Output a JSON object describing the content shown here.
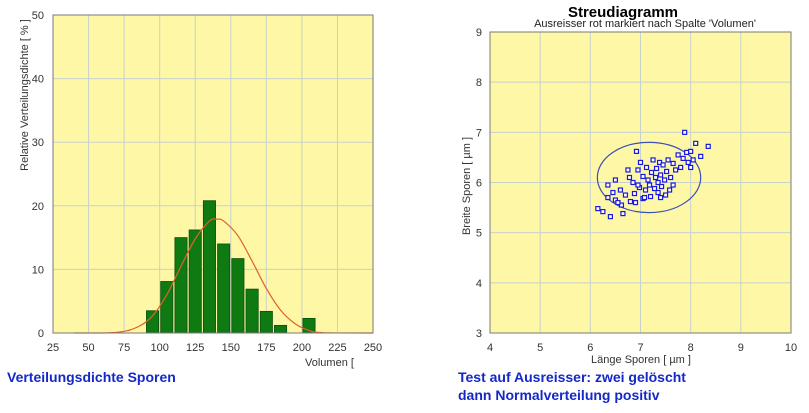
{
  "captions": {
    "left": "Verteilungsdichte Sporen",
    "right_line1": "Test auf Ausreisser: zwei gelöscht",
    "right_line2": "dann Normalverteilung positiv"
  },
  "colors": {
    "plot_bg": "#fef7a6",
    "grid": "#c8d2cc",
    "bar_fill": "#0f7a12",
    "bar_edge": "#0a4f0c",
    "curve": "#e0602a",
    "points": "#1a1adc",
    "ellipse": "#3a4fb8",
    "caption": "#1428c8"
  },
  "chart_data": [
    {
      "type": "bar",
      "title": "",
      "xlabel": "Volumen [",
      "ylabel": "Relative Verteilungsdichte [ % ]",
      "xlim": [
        25,
        250
      ],
      "ylim": [
        0,
        50
      ],
      "x_ticks": [
        25,
        50,
        75,
        100,
        125,
        150,
        175,
        200,
        225,
        250
      ],
      "y_ticks": [
        0,
        10,
        20,
        30,
        40,
        50
      ],
      "grid": true,
      "bin_width": 10,
      "bins": {
        "centers": [
          95,
          105,
          115,
          125,
          135,
          145,
          155,
          165,
          175,
          185,
          195,
          205
        ],
        "values": [
          3.5,
          8.1,
          15.0,
          16.2,
          20.8,
          14.0,
          11.7,
          6.9,
          3.4,
          1.2,
          0,
          2.3
        ]
      },
      "density_curve": {
        "x": [
          40,
          70,
          85,
          95,
          105,
          115,
          125,
          135,
          140,
          145,
          155,
          165,
          175,
          185,
          195,
          205,
          215,
          250
        ],
        "y": [
          0,
          0.1,
          1.0,
          2.7,
          6.0,
          10.5,
          14.8,
          17.6,
          17.9,
          17.6,
          15.3,
          11.3,
          7.0,
          3.6,
          1.5,
          0.4,
          0.05,
          0
        ]
      }
    },
    {
      "type": "scatter",
      "title": "Streudiagramm",
      "subtitle": "Ausreisser rot markiert nach Spalte 'Volumen'",
      "xlabel": "Länge Sporen [ µm ]",
      "ylabel": "Breite Sporen [ µm ]",
      "xlim": [
        4,
        10
      ],
      "ylim": [
        3,
        9
      ],
      "x_ticks": [
        4,
        5,
        6,
        7,
        8,
        9,
        10
      ],
      "y_ticks": [
        3,
        4,
        5,
        6,
        7,
        8,
        9
      ],
      "grid": true,
      "points": [
        [
          6.15,
          5.48
        ],
        [
          6.25,
          5.42
        ],
        [
          6.35,
          5.7
        ],
        [
          6.35,
          5.95
        ],
        [
          6.4,
          5.32
        ],
        [
          6.45,
          5.8
        ],
        [
          6.5,
          5.65
        ],
        [
          6.6,
          5.85
        ],
        [
          6.62,
          5.55
        ],
        [
          6.65,
          5.38
        ],
        [
          6.7,
          5.75
        ],
        [
          6.75,
          6.25
        ],
        [
          6.8,
          5.62
        ],
        [
          6.85,
          6.0
        ],
        [
          6.88,
          5.78
        ],
        [
          6.9,
          5.6
        ],
        [
          6.95,
          6.25
        ],
        [
          6.98,
          5.9
        ],
        [
          7.0,
          6.4
        ],
        [
          7.05,
          5.68
        ],
        [
          7.05,
          6.12
        ],
        [
          7.1,
          5.85
        ],
        [
          7.12,
          6.3
        ],
        [
          7.15,
          6.05
        ],
        [
          7.18,
          5.95
        ],
        [
          7.2,
          5.72
        ],
        [
          7.22,
          6.2
        ],
        [
          7.25,
          6.45
        ],
        [
          7.28,
          5.88
        ],
        [
          7.3,
          6.1
        ],
        [
          7.32,
          6.28
        ],
        [
          7.35,
          5.8
        ],
        [
          7.35,
          6.0
        ],
        [
          7.38,
          6.4
        ],
        [
          7.4,
          6.15
        ],
        [
          7.42,
          5.92
        ],
        [
          7.45,
          6.35
        ],
        [
          7.48,
          6.05
        ],
        [
          7.5,
          5.75
        ],
        [
          7.52,
          6.22
        ],
        [
          7.55,
          6.45
        ],
        [
          7.58,
          5.85
        ],
        [
          7.6,
          6.1
        ],
        [
          7.65,
          6.38
        ],
        [
          7.7,
          6.25
        ],
        [
          7.75,
          6.55
        ],
        [
          7.8,
          6.3
        ],
        [
          7.85,
          6.48
        ],
        [
          7.88,
          7.0
        ],
        [
          7.92,
          6.6
        ],
        [
          7.95,
          6.4
        ],
        [
          8.0,
          6.62
        ],
        [
          8.0,
          6.3
        ],
        [
          8.05,
          6.45
        ],
        [
          8.1,
          6.78
        ],
        [
          8.2,
          6.52
        ],
        [
          8.35,
          6.72
        ],
        [
          6.55,
          5.6
        ],
        [
          6.92,
          6.62
        ],
        [
          7.08,
          5.7
        ],
        [
          6.78,
          6.1
        ],
        [
          6.5,
          6.05
        ],
        [
          7.65,
          5.95
        ],
        [
          7.4,
          5.7
        ],
        [
          6.95,
          5.95
        ]
      ],
      "ellipse": {
        "cx": 7.17,
        "cy": 6.1,
        "rx": 1.03,
        "ry": 0.7
      }
    }
  ]
}
